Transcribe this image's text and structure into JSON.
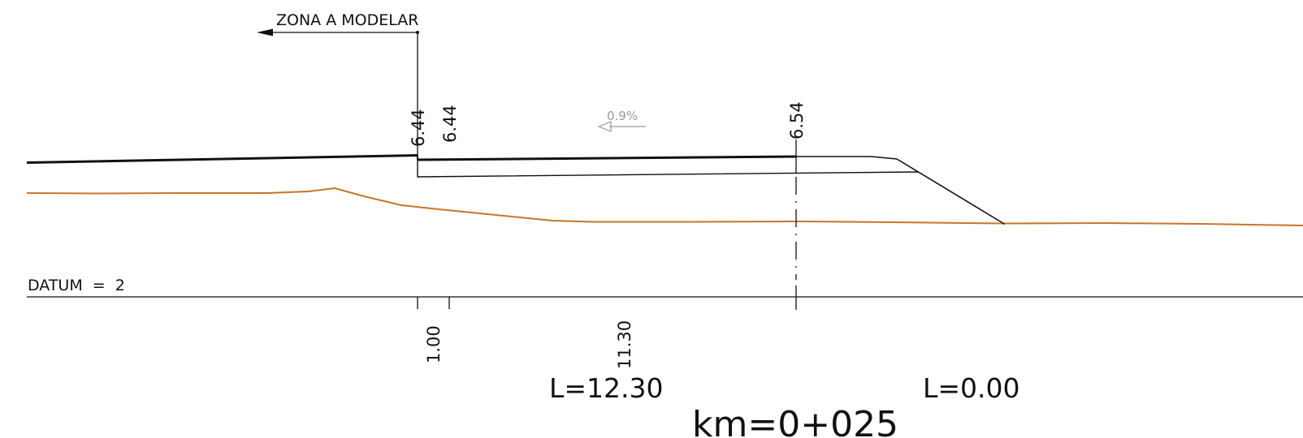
{
  "drawing": {
    "zone_label": "ZONA A MODELAR",
    "datum_label": "DATUM  =  2",
    "slope_label": "0.9%",
    "elevations": {
      "left_edge_upper": "6.44",
      "left_edge_lower": "6.44",
      "axis": "6.54"
    },
    "offsets": {
      "first": "1.00",
      "second": "11.30"
    },
    "left_width_label": "L=12.30",
    "right_width_label": "L=0.00",
    "station_label": "km=0+025",
    "colors": {
      "line": "#111111",
      "terrain": "#c8742a",
      "slope_note": "#9a9a9a"
    }
  }
}
